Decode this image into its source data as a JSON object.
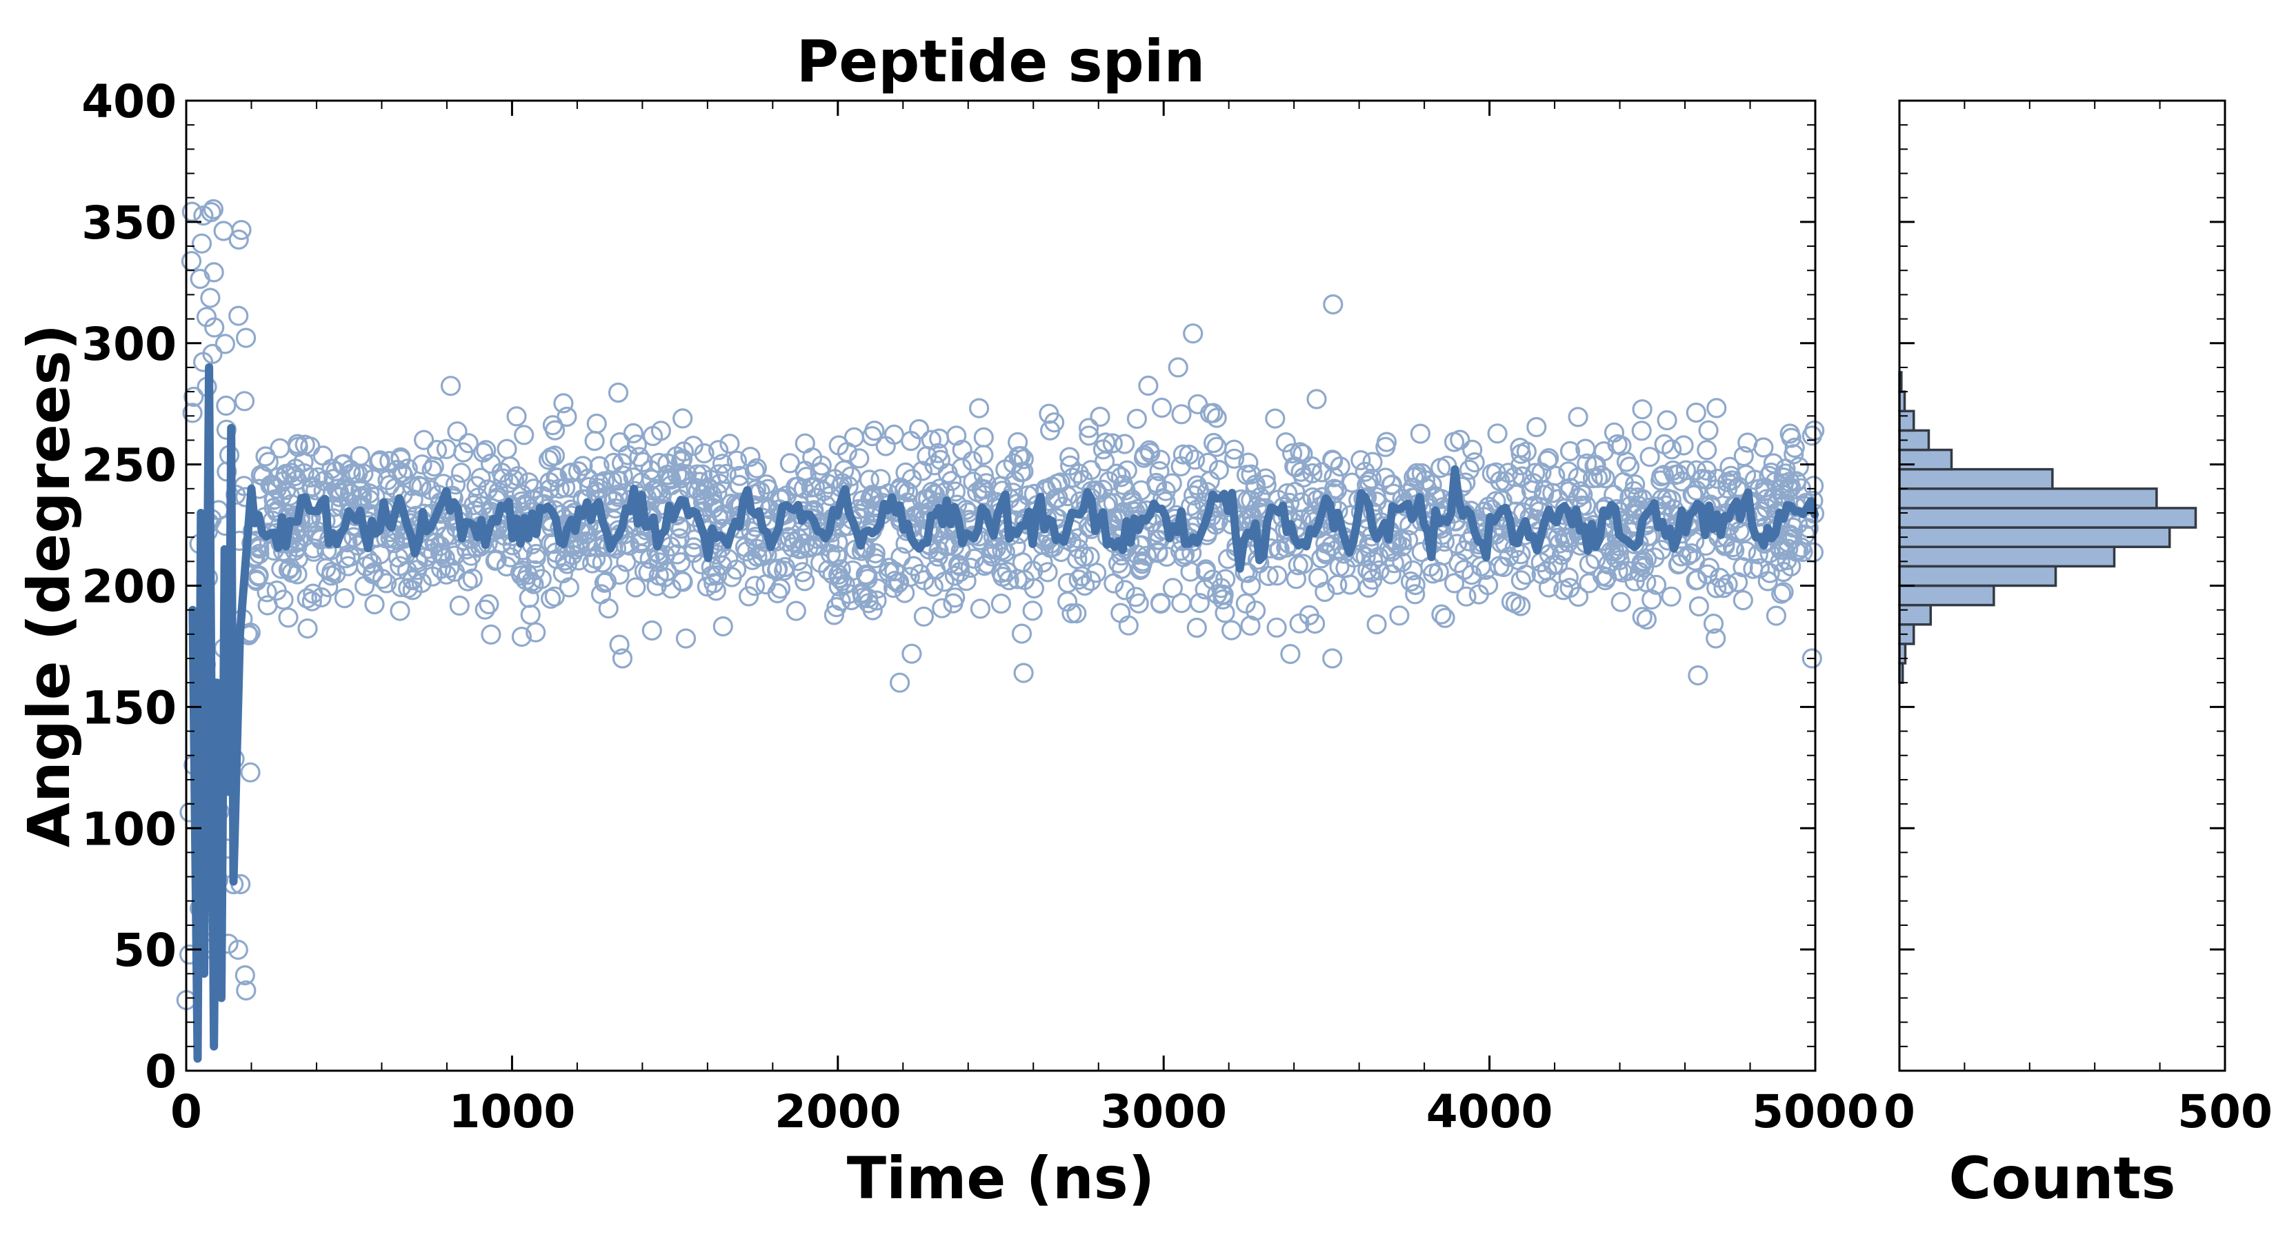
{
  "chart_data": [
    {
      "type": "scatter",
      "title": "Peptide spin",
      "xlabel": "Time (ns)",
      "ylabel": "Angle (degrees)",
      "xlim": [
        0,
        5000
      ],
      "ylim": [
        0,
        400
      ],
      "xticks": [
        "0",
        "1000",
        "2000",
        "3000",
        "4000",
        "5000"
      ],
      "yticks": [
        "0",
        "50",
        "100",
        "150",
        "200",
        "250",
        "300",
        "350",
        "400"
      ],
      "grid": false,
      "series": [
        {
          "style": "scatter-open-circles",
          "color": "#8fa9cc",
          "approx_points": 2000,
          "early_phase": {
            "x_range": [
              0,
              200
            ],
            "y_range": [
              0,
              360
            ]
          },
          "steady_phase": {
            "x_range": [
              200,
              5000
            ],
            "mean": 226,
            "sd": 18
          },
          "outliers": [
            {
              "x": 3090,
              "y": 304
            },
            {
              "x": 3520,
              "y": 316
            },
            {
              "x": 2190,
              "y": 160
            },
            {
              "x": 2570,
              "y": 164
            },
            {
              "x": 4640,
              "y": 163
            }
          ]
        },
        {
          "style": "line-running-average",
          "color": "#4472a8",
          "early_values": [
            {
              "x": 20,
              "y": 190
            },
            {
              "x": 35,
              "y": 5
            },
            {
              "x": 45,
              "y": 230
            },
            {
              "x": 55,
              "y": 40
            },
            {
              "x": 70,
              "y": 290
            },
            {
              "x": 85,
              "y": 10
            },
            {
              "x": 95,
              "y": 160
            },
            {
              "x": 108,
              "y": 30
            },
            {
              "x": 118,
              "y": 215
            },
            {
              "x": 130,
              "y": 115
            },
            {
              "x": 138,
              "y": 265
            },
            {
              "x": 145,
              "y": 78
            },
            {
              "x": 165,
              "y": 180
            },
            {
              "x": 200,
              "y": 240
            }
          ],
          "steady_mean": 226
        }
      ]
    },
    {
      "type": "bar",
      "orientation": "horizontal",
      "xlabel": "Counts",
      "xlim": [
        0,
        500
      ],
      "xticks": [
        "0",
        "500"
      ],
      "color": "#9db5d6",
      "bins": [
        {
          "range": [
            160,
            168
          ],
          "count": 5
        },
        {
          "range": [
            168,
            176
          ],
          "count": 9
        },
        {
          "range": [
            176,
            184
          ],
          "count": 22
        },
        {
          "range": [
            184,
            192
          ],
          "count": 48
        },
        {
          "range": [
            192,
            200
          ],
          "count": 145
        },
        {
          "range": [
            200,
            208
          ],
          "count": 240
        },
        {
          "range": [
            208,
            216
          ],
          "count": 330
        },
        {
          "range": [
            216,
            224
          ],
          "count": 415
        },
        {
          "range": [
            224,
            232
          ],
          "count": 455
        },
        {
          "range": [
            232,
            240
          ],
          "count": 395
        },
        {
          "range": [
            240,
            248
          ],
          "count": 235
        },
        {
          "range": [
            248,
            256
          ],
          "count": 80
        },
        {
          "range": [
            256,
            264
          ],
          "count": 45
        },
        {
          "range": [
            264,
            272
          ],
          "count": 22
        },
        {
          "range": [
            272,
            280
          ],
          "count": 8
        },
        {
          "range": [
            280,
            288
          ],
          "count": 3
        }
      ]
    }
  ]
}
